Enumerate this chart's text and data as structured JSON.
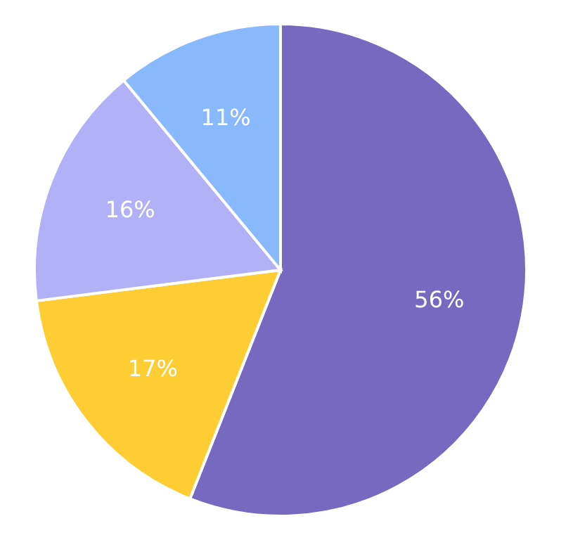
{
  "chart_data": {
    "type": "pie",
    "categories": [
      null,
      null,
      null,
      null
    ],
    "values": [
      56,
      17,
      16,
      11
    ],
    "colors": [
      "#7669bf",
      "#fdcd33",
      "#b2b1f7",
      "#8ab8fd"
    ],
    "value_labels": [
      "56%",
      "17%",
      "16%",
      "11%"
    ]
  }
}
